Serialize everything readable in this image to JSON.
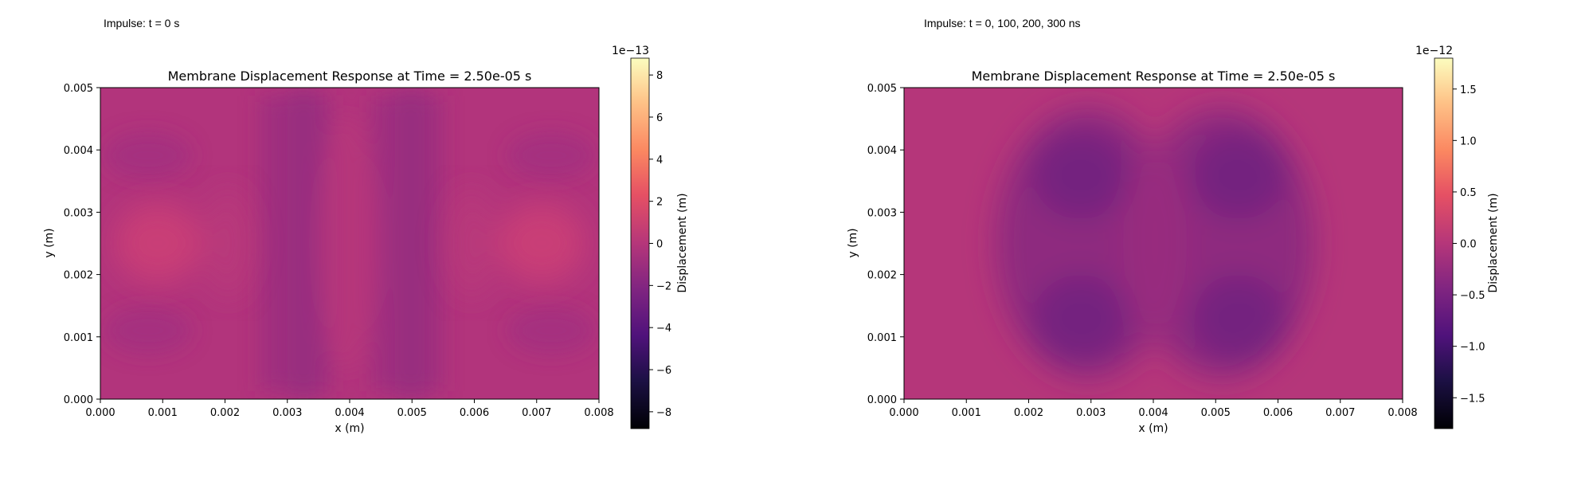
{
  "figure": {
    "captions": [
      "Impulse: t = 0 s",
      "Impulse: t = 0, 100, 200, 300 ns"
    ]
  },
  "chart_data": [
    {
      "type": "heatmap",
      "caption": "Impulse: t = 0 s",
      "title": "Membrane Displacement Response at Time = 2.50e-05 s",
      "xlabel": "x (m)",
      "ylabel": "y (m)",
      "xlim": [
        0,
        0.008
      ],
      "ylim": [
        0,
        0.005
      ],
      "xticks": [
        "0.000",
        "0.001",
        "0.002",
        "0.003",
        "0.004",
        "0.005",
        "0.006",
        "0.007",
        "0.008"
      ],
      "yticks": [
        "0.000",
        "0.001",
        "0.002",
        "0.003",
        "0.004",
        "0.005"
      ],
      "colormap": "magma",
      "colorbar": {
        "label": "Displacement (m)",
        "offset_text": "1e−13",
        "range": [
          -8.8,
          8.8
        ],
        "ticks": [
          "8",
          "6",
          "4",
          "2",
          "0",
          "−2",
          "−4",
          "−6",
          "−8"
        ]
      },
      "field_description": "near-zero displacement with vertical bands near x=0.003 and x=0.005 and brighter spots near (0.001, 0.0025) and (0.007, 0.0025)"
    },
    {
      "type": "heatmap",
      "caption": "Impulse: t = 0, 100, 200, 300 ns",
      "title": "Membrane Displacement Response at Time = 2.50e-05 s",
      "xlabel": "x (m)",
      "ylabel": "y (m)",
      "xlim": [
        0,
        0.008
      ],
      "ylim": [
        0,
        0.005
      ],
      "xticks": [
        "0.000",
        "0.001",
        "0.002",
        "0.003",
        "0.004",
        "0.005",
        "0.006",
        "0.007",
        "0.008"
      ],
      "yticks": [
        "0.000",
        "0.001",
        "0.002",
        "0.003",
        "0.004",
        "0.005"
      ],
      "colormap": "magma",
      "colorbar": {
        "label": "Displacement (m)",
        "offset_text": "1e−12",
        "range": [
          -1.8,
          1.8
        ],
        "ticks": [
          "1.5",
          "1.0",
          "0.5",
          "0.0",
          "−0.5",
          "−1.0",
          "−1.5"
        ]
      },
      "field_description": "two darker vertical lobes near x=0.0028 and x=0.0053 spanning y≈0.0005–0.0045"
    }
  ]
}
